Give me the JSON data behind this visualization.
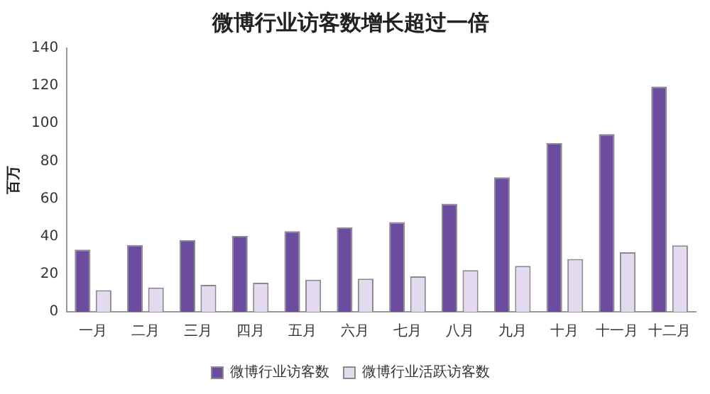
{
  "chart_data": {
    "type": "bar",
    "title": "微博行业访客数增长超过一倍",
    "ylabel": "百万",
    "categories": [
      "一月",
      "二月",
      "三月",
      "四月",
      "五月",
      "六月",
      "七月",
      "八月",
      "九月",
      "十月",
      "十一月",
      "十二月"
    ],
    "series": [
      {
        "name": "微博行业访客数",
        "color": "#6b4c9f",
        "values": [
          33,
          35.5,
          38,
          40.3,
          42.8,
          44.8,
          47.6,
          57.4,
          71.4,
          89.6,
          94.4,
          119.6
        ]
      },
      {
        "name": "微博行业活跃访客数",
        "color": "#e4daf0",
        "values": [
          11.5,
          12.9,
          14.3,
          15.4,
          17,
          17.6,
          18.8,
          22.1,
          24.4,
          28,
          31.6,
          35.3
        ]
      }
    ],
    "ylim": [
      0,
      140
    ],
    "yticks": [
      0,
      20,
      40,
      60,
      80,
      100,
      120,
      140
    ],
    "grid": false,
    "legend": "bottom"
  }
}
